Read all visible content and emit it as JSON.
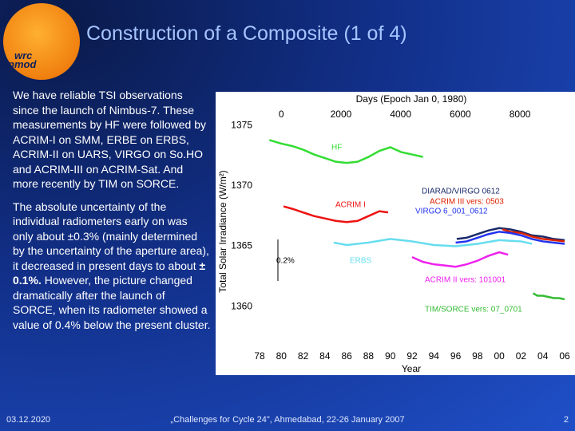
{
  "header": {
    "title": "Construction of a Composite (1 of 4)",
    "logo": [
      "wrc",
      "pmod"
    ]
  },
  "body": {
    "paragraph_1": "We have reliable TSI observations since the launch of Nimbus-7. These measurements by HF were followed by ACRIM-I on SMM, ERBE on ERBS, ACRIM-II on UARS, VIRGO on So.HO and ACRIM-III on ACRIM-Sat. And more recently by TIM on SORCE.",
    "paragraph_2": [
      "The absolute uncertainty of the individual radiometers early on was only about ±0.3% (mainly determined by the uncertainty of the aperture area), it decreased in present days to about ",
      "± 0.1%.",
      " However, the picture changed dramatically after the launch of SORCE, when its radiometer showed a value of 0.4% below the present cluster."
    ]
  },
  "footer": {
    "date": "03.12.2020",
    "event": "„Challenges for Cycle 24\", Ahmedabad, 22-26 January 2007",
    "page": "2"
  },
  "chart_data": {
    "type": "line",
    "x_label": "Year",
    "x2_label": "Days (Epoch Jan 0, 1980)",
    "y_label": "Total Solar Irradiance (W/m²)",
    "annotation": "0.2%",
    "xlim": [
      1978,
      2006
    ],
    "xticks": [
      {
        "value": 1978,
        "label": "78"
      },
      {
        "value": 1980,
        "label": "80"
      },
      {
        "value": 1982,
        "label": "82"
      },
      {
        "value": 1984,
        "label": "84"
      },
      {
        "value": 1986,
        "label": "86"
      },
      {
        "value": 1988,
        "label": "88"
      },
      {
        "value": 1990,
        "label": "90"
      },
      {
        "value": 1992,
        "label": "92"
      },
      {
        "value": 1994,
        "label": "94"
      },
      {
        "value": 1996,
        "label": "96"
      },
      {
        "value": 1998,
        "label": "98"
      },
      {
        "value": 2000,
        "label": "00"
      },
      {
        "value": 2002,
        "label": "02"
      },
      {
        "value": 2004,
        "label": "04"
      },
      {
        "value": 2006,
        "label": "06"
      }
    ],
    "x2lim": [
      -730,
      9497
    ],
    "x2ticks": [
      0,
      2000,
      4000,
      6000,
      8000
    ],
    "ylim": [
      1356.5,
      1377.4
    ],
    "yticks": [
      1360,
      1365,
      1370,
      1375
    ],
    "series": [
      {
        "name": "HF",
        "color": "#33dd33",
        "x": [
          1978.9,
          1980,
          1981,
          1982,
          1983,
          1984,
          1985,
          1986,
          1987,
          1988,
          1989,
          1990,
          1991,
          1992,
          1993
        ],
        "values": [
          1373.8,
          1373.5,
          1373.3,
          1373.0,
          1372.6,
          1372.3,
          1372.0,
          1371.9,
          1372.0,
          1372.4,
          1372.9,
          1373.2,
          1372.8,
          1372.6,
          1372.4
        ]
      },
      {
        "name": "ACRIM I",
        "color": "#ee1111",
        "x": [
          1980.2,
          1981,
          1982,
          1983,
          1984,
          1985,
          1986,
          1987,
          1988,
          1989,
          1989.8
        ],
        "values": [
          1368.3,
          1368.1,
          1367.8,
          1367.5,
          1367.3,
          1367.1,
          1367.0,
          1367.1,
          1367.5,
          1367.9,
          1367.8
        ]
      },
      {
        "name": "ERBS",
        "color": "#66ddee",
        "x": [
          1984.8,
          1986,
          1988,
          1990,
          1992,
          1994,
          1996,
          1998,
          2000,
          2002,
          2003
        ],
        "values": [
          1365.3,
          1365.1,
          1365.3,
          1365.6,
          1365.4,
          1365.1,
          1365.0,
          1365.2,
          1365.5,
          1365.4,
          1365.2
        ]
      },
      {
        "name": "ACRIM II vers: 101001",
        "color": "#ee22ee",
        "x": [
          1992,
          1993,
          1994,
          1995,
          1996,
          1997,
          1998,
          1999,
          2000,
          2000.8
        ],
        "values": [
          1364.1,
          1363.7,
          1363.5,
          1363.4,
          1363.3,
          1363.5,
          1363.8,
          1364.2,
          1364.5,
          1364.3
        ]
      },
      {
        "name": "DIARAD/VIRGO 0612",
        "color": "#1a2a6a",
        "x": [
          1996.1,
          1997,
          1998,
          1999,
          2000,
          2001,
          2002,
          2003,
          2004,
          2005,
          2006
        ],
        "values": [
          1365.6,
          1365.7,
          1366.0,
          1366.3,
          1366.5,
          1366.4,
          1366.2,
          1365.9,
          1365.8,
          1365.6,
          1365.5
        ]
      },
      {
        "name": "ACRIM III vers: 0503",
        "color": "#dd2200",
        "x": [
          2000.3,
          2001,
          2002,
          2003,
          2004,
          2005,
          2006
        ],
        "values": [
          1366.4,
          1366.2,
          1366.1,
          1365.8,
          1365.6,
          1365.5,
          1365.4
        ]
      },
      {
        "name": "VIRGO 6_001_0612",
        "color": "#2233ee",
        "x": [
          1996,
          1997,
          1998,
          1999,
          2000,
          2001,
          2002,
          2003,
          2004,
          2005,
          2006
        ],
        "values": [
          1365.3,
          1365.4,
          1365.7,
          1366.0,
          1366.2,
          1366.1,
          1365.9,
          1365.6,
          1365.4,
          1365.3,
          1365.2
        ]
      },
      {
        "name": "TIM/SORCE vers: 07_0701",
        "color": "#33bb33",
        "x": [
          2003.1,
          2003.5,
          2004,
          2004.5,
          2005,
          2005.5,
          2006
        ],
        "values": [
          1361.1,
          1360.9,
          1360.9,
          1360.8,
          1360.7,
          1360.7,
          1360.6
        ]
      }
    ]
  }
}
